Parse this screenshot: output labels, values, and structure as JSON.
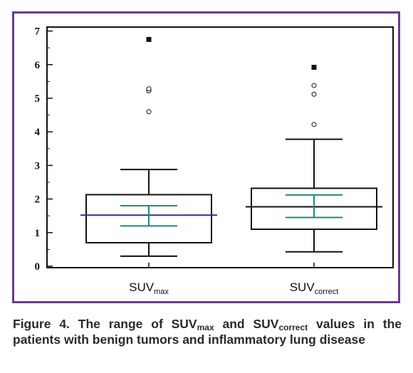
{
  "chart_data": {
    "type": "box",
    "categories": [
      {
        "main": "SUV",
        "sub": "max"
      },
      {
        "main": "SUV",
        "sub": "correct"
      }
    ],
    "ylim": [
      0,
      7.2
    ],
    "yticks": [
      0,
      1,
      2,
      3,
      4,
      5,
      6,
      7
    ],
    "series": [
      {
        "whisker_low": 0.3,
        "q1": 0.7,
        "median": 1.52,
        "q3": 2.13,
        "whisker_high": 2.88,
        "ci_low": 1.2,
        "ci_high": 1.8,
        "outliers": [
          4.6,
          5.22,
          5.28
        ],
        "far_outliers": [
          6.75
        ]
      },
      {
        "whisker_low": 0.43,
        "q1": 1.1,
        "median": 1.77,
        "q3": 2.32,
        "whisker_high": 3.78,
        "ci_low": 1.45,
        "ci_high": 2.12,
        "outliers": [
          4.22,
          5.12,
          5.38
        ],
        "far_outliers": [
          5.92
        ]
      }
    ],
    "colors": {
      "box": "#111111",
      "median": "#2b2fa0",
      "ci": "#1d8a7a",
      "frame": "#6b3a8c"
    }
  },
  "caption": {
    "p1": "Figure 4. The range of ",
    "s1": "SUV",
    "s1_sub": "max",
    "p2": " and ",
    "s2": "SUV",
    "s2_sub": "correct",
    "p3": " values in the patients with benign tumors and inflammatory lung disease"
  }
}
